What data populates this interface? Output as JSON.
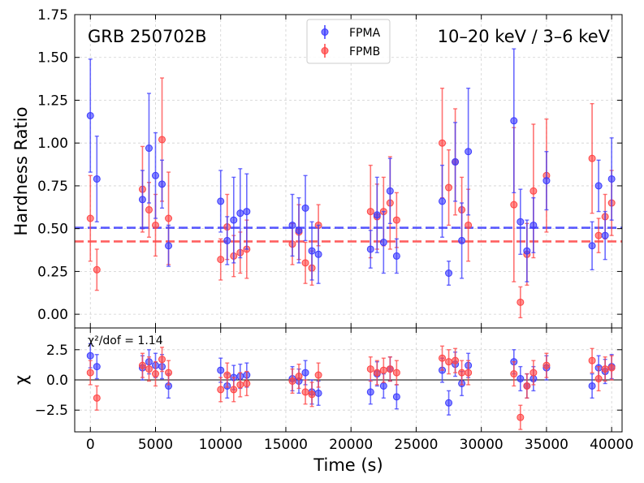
{
  "chart_data": [
    {
      "panel": "top",
      "type": "scatter",
      "title": "GRB 250702B",
      "band_label": "10–20 keV / 3–6 keV",
      "xlabel": "Time (s)",
      "ylabel": "Hardness Ratio",
      "xlim": [
        -1200,
        40800
      ],
      "ylim": [
        -0.08,
        1.75
      ],
      "xticks": [
        0,
        5000,
        10000,
        15000,
        20000,
        25000,
        30000,
        35000,
        40000
      ],
      "yticks": [
        0.0,
        0.25,
        0.5,
        0.75,
        1.0,
        1.25,
        1.5,
        1.75
      ],
      "ytick_labels": [
        "0.00",
        "0.25",
        "0.50",
        "0.75",
        "1.00",
        "1.25",
        "1.50",
        "1.75"
      ],
      "grid": true,
      "legend_position": "top-center",
      "series": [
        {
          "name": "FPMA",
          "color": "#3b3bff",
          "mean": 0.505,
          "x": [
            0,
            500,
            4000,
            4500,
            5000,
            5500,
            6000,
            10000,
            10500,
            11000,
            11500,
            12000,
            15500,
            16000,
            16500,
            17000,
            17500,
            21500,
            22000,
            22500,
            23000,
            23500,
            27000,
            27500,
            28000,
            28500,
            29000,
            32500,
            33000,
            33500,
            34000,
            35000,
            38500,
            39000,
            39500,
            40000
          ],
          "y": [
            1.16,
            0.79,
            0.67,
            0.97,
            0.81,
            0.76,
            0.4,
            0.66,
            0.43,
            0.55,
            0.59,
            0.6,
            0.52,
            0.49,
            0.62,
            0.37,
            0.35,
            0.38,
            0.58,
            0.42,
            0.72,
            0.34,
            0.66,
            0.24,
            0.89,
            0.43,
            0.95,
            1.13,
            0.54,
            0.37,
            0.52,
            0.78,
            0.4,
            0.75,
            0.46,
            0.79
          ],
          "err": [
            0.33,
            0.25,
            0.17,
            0.32,
            0.25,
            0.14,
            0.12,
            0.18,
            0.14,
            0.25,
            0.26,
            0.22,
            0.18,
            0.19,
            0.19,
            0.17,
            0.17,
            0.11,
            0.22,
            0.18,
            0.19,
            0.1,
            0.21,
            0.07,
            0.23,
            0.22,
            0.37,
            0.42,
            0.19,
            0.18,
            0.16,
            0.17,
            0.14,
            0.15,
            0.14,
            0.24
          ]
        },
        {
          "name": "FPMB",
          "color": "#ff4444",
          "mean": 0.425,
          "x": [
            0,
            500,
            4000,
            4500,
            5000,
            5500,
            6000,
            10000,
            10500,
            11000,
            11500,
            12000,
            15500,
            16000,
            16500,
            17000,
            17500,
            21500,
            22000,
            22500,
            23000,
            23500,
            27000,
            27500,
            28000,
            28500,
            29000,
            32500,
            33000,
            33500,
            34000,
            35000,
            38500,
            39000,
            39500,
            40000
          ],
          "y": [
            0.56,
            0.26,
            0.73,
            0.61,
            0.52,
            1.02,
            0.56,
            0.32,
            0.51,
            0.34,
            0.36,
            0.38,
            0.41,
            0.48,
            0.3,
            0.27,
            0.52,
            0.6,
            0.57,
            0.6,
            0.65,
            0.55,
            1.0,
            0.74,
            0.89,
            0.61,
            0.52,
            0.64,
            0.07,
            0.35,
            0.72,
            0.81,
            0.91,
            0.46,
            0.57,
            0.65
          ],
          "err": [
            0.25,
            0.12,
            0.25,
            0.16,
            0.18,
            0.36,
            0.27,
            0.12,
            0.19,
            0.12,
            0.12,
            0.17,
            0.12,
            0.16,
            0.12,
            0.1,
            0.12,
            0.27,
            0.19,
            0.2,
            0.27,
            0.16,
            0.32,
            0.22,
            0.31,
            0.19,
            0.21,
            0.45,
            0.09,
            0.18,
            0.39,
            0.33,
            0.32,
            0.1,
            0.13,
            0.19
          ]
        }
      ]
    },
    {
      "panel": "bottom",
      "type": "scatter",
      "annotation": "χ²/dof = 1.14",
      "xlabel": "Time (s)",
      "ylabel": "χ",
      "xlim": [
        -1200,
        40800
      ],
      "ylim": [
        -4.3,
        4.3
      ],
      "xticks": [
        0,
        5000,
        10000,
        15000,
        20000,
        25000,
        30000,
        35000,
        40000
      ],
      "xtick_labels": [
        "0",
        "5000",
        "10000",
        "15000",
        "20000",
        "25000",
        "30000",
        "35000",
        "40000"
      ],
      "yticks": [
        -2.5,
        0.0,
        2.5
      ],
      "ytick_labels": [
        "−2.5",
        "0.0",
        "2.5"
      ],
      "zero_line": 0,
      "grid": true,
      "series": [
        {
          "name": "FPMA",
          "color": "#3b3bff",
          "x": [
            0,
            500,
            4000,
            4500,
            5000,
            5500,
            6000,
            10000,
            10500,
            11000,
            11500,
            12000,
            15500,
            16000,
            16500,
            17000,
            17500,
            21500,
            22000,
            22500,
            23000,
            23500,
            27000,
            27500,
            28000,
            28500,
            29000,
            32500,
            33000,
            33500,
            34000,
            35000,
            38500,
            39000,
            39500,
            40000
          ],
          "y": [
            2.0,
            1.1,
            1.0,
            1.5,
            1.2,
            1.1,
            -0.5,
            0.8,
            -0.5,
            0.2,
            0.3,
            0.4,
            0.1,
            -0.1,
            0.6,
            -1.0,
            -1.1,
            -1.0,
            0.5,
            -0.5,
            0.9,
            -1.4,
            0.8,
            -1.9,
            1.3,
            -0.3,
            1.2,
            1.5,
            0.1,
            -0.5,
            0.1,
            1.0,
            -0.5,
            1.0,
            0.7,
            1.1
          ],
          "err": 1.0
        },
        {
          "name": "FPMB",
          "color": "#ff4444",
          "x": [
            0,
            500,
            4000,
            4500,
            5000,
            5500,
            6000,
            10000,
            10500,
            11000,
            11500,
            12000,
            15500,
            16000,
            16500,
            17000,
            17500,
            21500,
            22000,
            22500,
            23000,
            23500,
            27000,
            27500,
            28000,
            28500,
            29000,
            32500,
            33000,
            33500,
            34000,
            35000,
            38500,
            39000,
            39500,
            40000
          ],
          "y": [
            0.6,
            -1.5,
            1.2,
            0.9,
            0.5,
            1.7,
            0.6,
            -0.8,
            0.4,
            -0.8,
            -0.4,
            -0.3,
            -0.1,
            0.3,
            -1.0,
            -1.2,
            0.4,
            0.9,
            0.6,
            0.8,
            0.9,
            0.6,
            1.8,
            1.5,
            1.6,
            0.6,
            0.6,
            0.5,
            -3.1,
            -0.5,
            0.6,
            1.2,
            1.6,
            0.1,
            0.9,
            1.0
          ],
          "err": 1.0
        }
      ]
    }
  ]
}
